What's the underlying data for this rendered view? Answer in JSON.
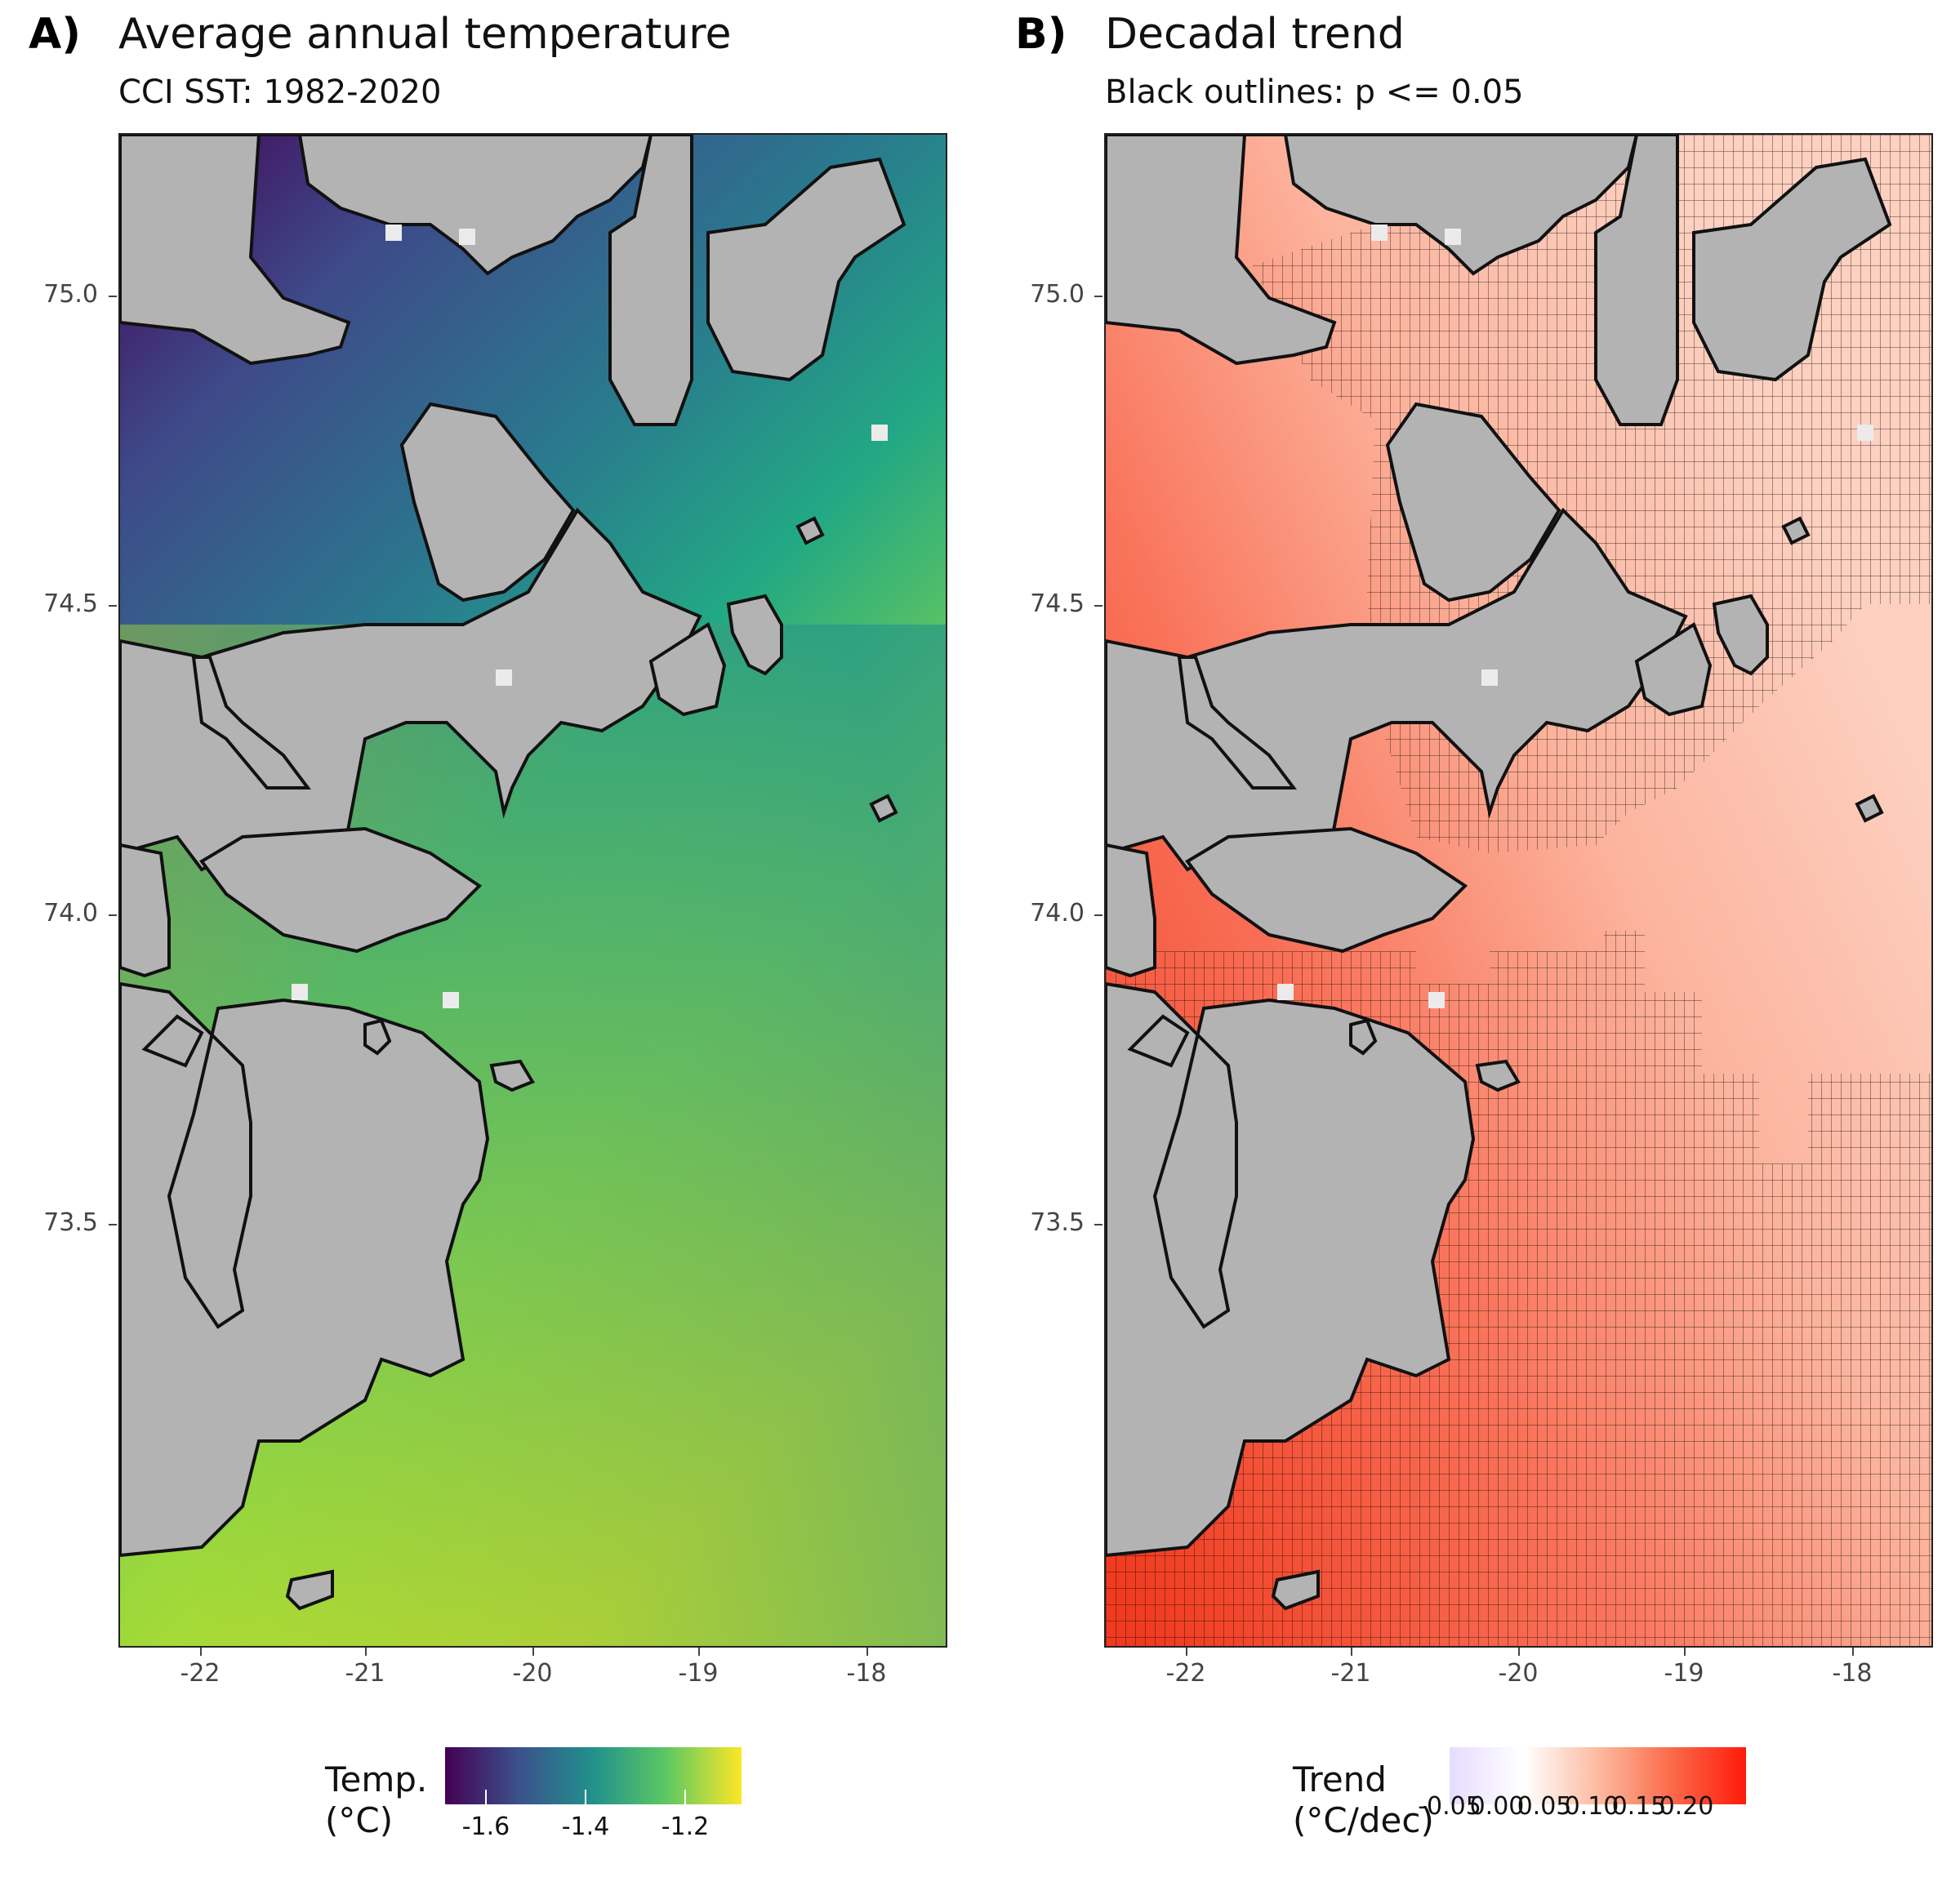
{
  "panels": [
    {
      "tag": "A)",
      "title": "Average annual temperature",
      "subtitle": "CCI SST: 1982-2020",
      "legend": {
        "title": "Temp.\n(°C)",
        "labels": [
          "-1.6",
          "-1.4",
          "-1.2"
        ],
        "colors": [
          "#440154",
          "#3b528b",
          "#21918c",
          "#5ec962",
          "#fde725"
        ]
      }
    },
    {
      "tag": "B)",
      "title": "Decadal trend",
      "subtitle": "Black outlines: p <= 0.05",
      "legend": {
        "title": "Trend\n(°C/dec)",
        "labels": [
          "-0.05",
          "0.00",
          "0.05",
          "0.10",
          "0.15",
          "0.20"
        ],
        "colors": [
          "#e6dcff",
          "#ffffff",
          "#fcbba1",
          "#fb6a4a",
          "#ff1a0a"
        ]
      }
    }
  ],
  "axes": {
    "x_ticks": [
      "-22",
      "-21",
      "-20",
      "-19",
      "-18"
    ],
    "y_ticks": [
      "75.0",
      "74.5",
      "74.0",
      "73.5"
    ]
  },
  "map": {
    "land_color": "#b3b3b3",
    "coast_color": "#111111",
    "missing_color": "#ebebeb"
  }
}
